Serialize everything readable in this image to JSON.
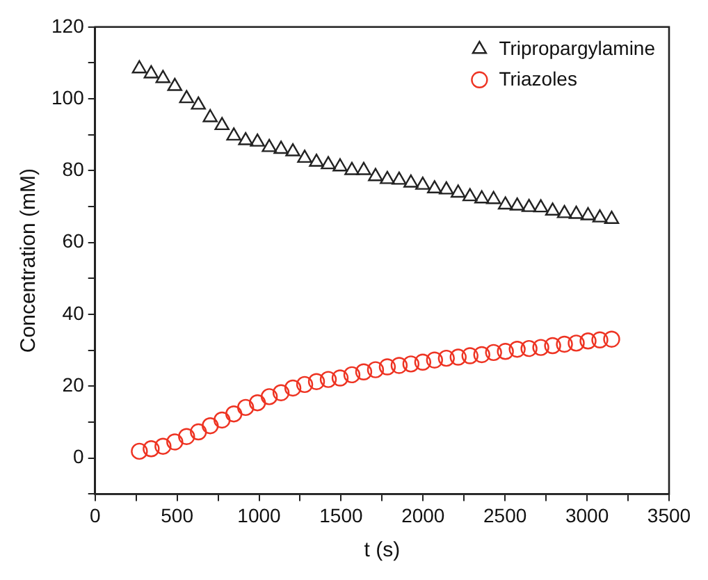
{
  "chart_data": {
    "type": "scatter",
    "xlabel": "t (s)",
    "ylabel": "Concentration (mM)",
    "x": [
      270,
      342,
      414,
      486,
      558,
      630,
      702,
      774,
      846,
      918,
      990,
      1062,
      1134,
      1206,
      1278,
      1350,
      1422,
      1494,
      1566,
      1638,
      1710,
      1782,
      1854,
      1926,
      1998,
      2070,
      2142,
      2214,
      2286,
      2358,
      2430,
      2502,
      2574,
      2646,
      2718,
      2790,
      2862,
      2934,
      3006,
      3078,
      3150
    ],
    "series": [
      {
        "name": "Tripropargylamine",
        "color": "#222222",
        "marker": "triangle",
        "values": [
          108.4,
          107.0,
          105.7,
          103.5,
          100.1,
          98.3,
          94.8,
          92.6,
          89.7,
          88.4,
          88.0,
          86.5,
          86.0,
          85.3,
          83.5,
          82.4,
          81.7,
          81.1,
          80.1,
          80.1,
          78.4,
          77.6,
          77.4,
          76.6,
          76.0,
          75.0,
          74.7,
          73.8,
          72.8,
          72.2,
          72.0,
          70.5,
          70.2,
          69.8,
          69.7,
          68.8,
          68.1,
          67.9,
          67.5,
          66.9,
          66.5
        ]
      },
      {
        "name": "Triazoles",
        "color": "#ee3322",
        "marker": "circle",
        "values": [
          1.9,
          2.6,
          3.3,
          4.5,
          6.0,
          7.3,
          9.0,
          10.6,
          12.3,
          14.1,
          15.4,
          17.1,
          18.2,
          19.5,
          20.5,
          21.3,
          21.9,
          22.3,
          23.2,
          24.0,
          24.6,
          25.4,
          25.8,
          26.2,
          26.7,
          27.3,
          27.8,
          28.1,
          28.5,
          28.8,
          29.4,
          29.7,
          30.3,
          30.5,
          30.8,
          31.3,
          31.7,
          32.0,
          32.6,
          32.9,
          33.1
        ]
      }
    ],
    "xlim": [
      0,
      3500
    ],
    "xticks": [
      0,
      {
        "value": 250,
        "label": null
      },
      500,
      {
        "value": 750,
        "label": null
      },
      1000,
      {
        "value": 1250,
        "label": null
      },
      1500,
      {
        "value": 1750,
        "label": null
      },
      2000,
      {
        "value": 2250,
        "label": null
      },
      2500,
      {
        "value": 2750,
        "label": null
      },
      3000,
      {
        "value": 3250,
        "label": null
      },
      3500
    ],
    "ylim": [
      -10,
      120
    ],
    "yticks": [
      {
        "value": -10,
        "label": null
      },
      0,
      {
        "value": 10,
        "label": null
      },
      20,
      {
        "value": 30,
        "label": null
      },
      40,
      {
        "value": 50,
        "label": null
      },
      60,
      {
        "value": 70,
        "label": null
      },
      80,
      {
        "value": 90,
        "label": null
      },
      100,
      {
        "value": 110,
        "label": null
      },
      120
    ],
    "grid": false,
    "legend": "top right"
  }
}
